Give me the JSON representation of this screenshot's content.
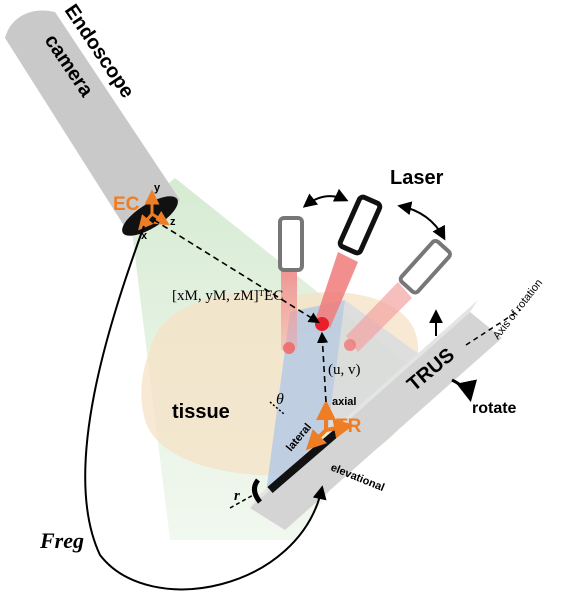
{
  "camera": {
    "label_line1": "Endoscope",
    "label_line2": "camera"
  },
  "frames": {
    "ec": {
      "label": "EC",
      "x": "x",
      "y": "y",
      "z": "z"
    },
    "tr": {
      "label": "TR",
      "axial": "axial",
      "lateral": "lateral",
      "elevational": "elevational"
    }
  },
  "labels": {
    "laser": "Laser",
    "tissue": "tissue",
    "trus": "TRUS",
    "axis_of_rotation": "Axis of rotation",
    "rotate": "rotate",
    "theta": "θ",
    "r": "r",
    "uv": "(u, v)",
    "marker_coord": "[xM, yM, zM]ᵀEC",
    "freg": "Freg"
  },
  "colors": {
    "camera_body": "#c9c9c9",
    "fov_green": "#d9ecd2",
    "tissue": "#f7e4c8",
    "plane_blue": "#b8cde6",
    "laser_red": "#f08080",
    "laser_dot": "#e8202a",
    "frame_orange": "#ef7d24",
    "trus_body": "#d4d4d4"
  },
  "icons": [
    "camera-body",
    "laser-emitter",
    "ultrasound-probe",
    "rotation-arrow",
    "coordinate-frame"
  ]
}
